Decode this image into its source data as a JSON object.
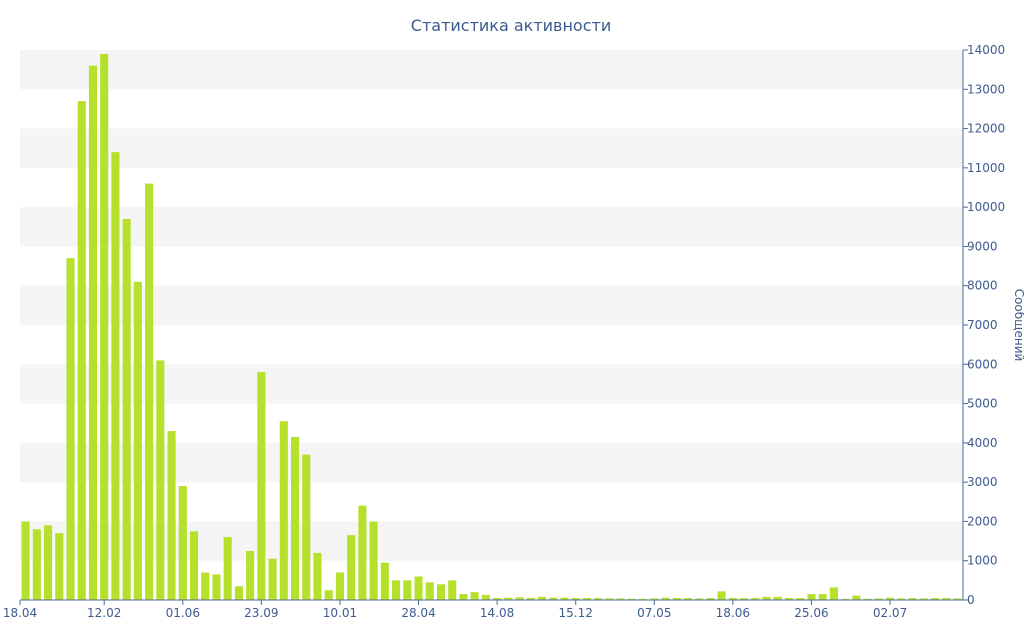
{
  "chart_data": {
    "type": "bar",
    "title": "Статистика активности",
    "ylabel": "Сообщений",
    "xlabel": "",
    "ylim": [
      0,
      14000
    ],
    "y_ticks": [
      0,
      1000,
      2000,
      3000,
      4000,
      5000,
      6000,
      7000,
      8000,
      9000,
      10000,
      11000,
      12000,
      13000,
      14000
    ],
    "y_axis_side": "right",
    "grid": "alternating horizontal bands",
    "x_tick_labels": [
      {
        "label": "18.04",
        "index": 0
      },
      {
        "label": "12.02",
        "index": 7
      },
      {
        "label": "01.06",
        "index": 14
      },
      {
        "label": "23.09",
        "index": 21
      },
      {
        "label": "10.01",
        "index": 28
      },
      {
        "label": "28.04",
        "index": 35
      },
      {
        "label": "14.08",
        "index": 42
      },
      {
        "label": "15.12",
        "index": 49
      },
      {
        "label": "07.05",
        "index": 56
      },
      {
        "label": "18.06",
        "index": 63
      },
      {
        "label": "25.06",
        "index": 70
      },
      {
        "label": "02.07",
        "index": 77
      }
    ],
    "values": [
      2000,
      1800,
      1900,
      1700,
      8700,
      12700,
      13600,
      13900,
      11400,
      9700,
      8100,
      10600,
      6100,
      4300,
      2900,
      1750,
      700,
      650,
      1600,
      350,
      1250,
      5800,
      1050,
      4550,
      4150,
      3700,
      1200,
      250,
      700,
      1650,
      2400,
      2000,
      950,
      500,
      500,
      600,
      450,
      400,
      500,
      150,
      200,
      130,
      50,
      60,
      70,
      50,
      80,
      60,
      60,
      50,
      50,
      50,
      40,
      40,
      30,
      30,
      40,
      60,
      50,
      50,
      40,
      50,
      220,
      50,
      50,
      50,
      80,
      80,
      50,
      50,
      150,
      150,
      320,
      30,
      110,
      30,
      40,
      60,
      40,
      50,
      40,
      50,
      50,
      40
    ],
    "bar_color": "#b5e02c",
    "text_color": "#3e5b8f"
  }
}
